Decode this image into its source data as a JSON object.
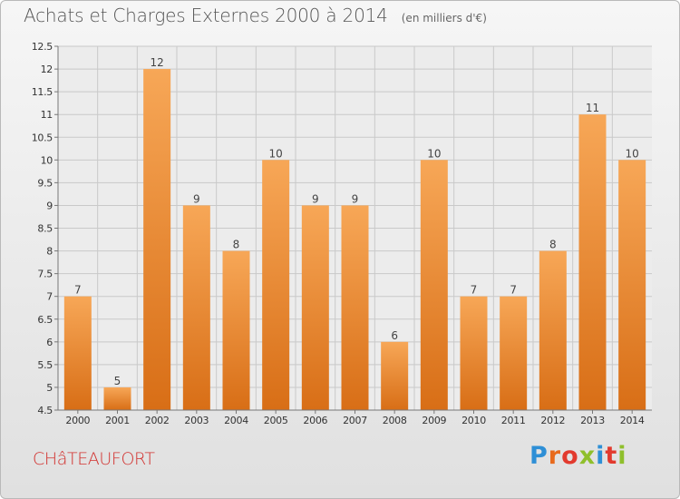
{
  "header": {
    "title": "Achats et Charges Externes 2000 à 2014",
    "subtitle": "(en milliers d'€)"
  },
  "footer": {
    "city": "CHâTEAUFORT",
    "brand": "Proxiti",
    "brand_colors": [
      "#2e8fd6",
      "#e86a1c",
      "#e23a2e",
      "#8fbf2b",
      "#2e8fd6",
      "#e23a2e",
      "#8fbf2b"
    ]
  },
  "colors": {
    "bar_top": "#f7a757",
    "bar_bottom": "#d86e16",
    "grid": "#c9c9c9",
    "axis_text": "#333333"
  },
  "chart_data": {
    "type": "bar",
    "categories": [
      "2000",
      "2001",
      "2002",
      "2003",
      "2004",
      "2005",
      "2006",
      "2007",
      "2008",
      "2009",
      "2010",
      "2011",
      "2012",
      "2013",
      "2014"
    ],
    "values": [
      7,
      5,
      12,
      9,
      8,
      10,
      9,
      9,
      6,
      10,
      7,
      7,
      8,
      11,
      10
    ],
    "title": "Achats et Charges Externes 2000 à 2014",
    "ylim": [
      4.5,
      12.5
    ],
    "yticks": [
      4.5,
      5,
      5.5,
      6,
      6.5,
      7,
      7.5,
      8,
      8.5,
      9,
      9.5,
      10,
      10.5,
      11,
      11.5,
      12,
      12.5
    ],
    "grid": true,
    "data_labels": true
  }
}
